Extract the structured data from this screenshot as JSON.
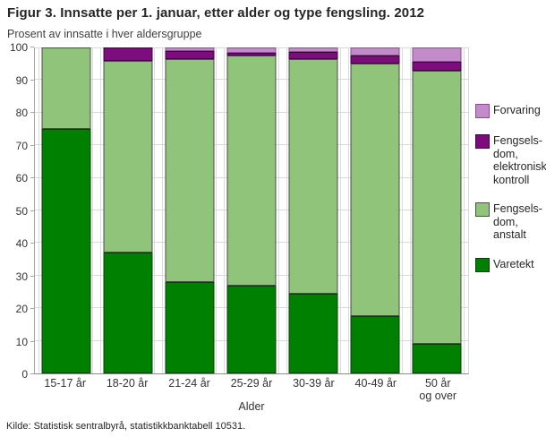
{
  "title": "Figur 3. Innsatte per 1. januar, etter alder og type fengsling. 2012",
  "subtitle": "Prosent av innsatte i hver aldersgruppe",
  "x_axis_title": "Alder",
  "source": "Kilde: Statistisk sentralbyrå, statistikkbanktabell 10531.",
  "colors": {
    "varetekt": "#008000",
    "fengselsdom_anstalt": "#8fc47a",
    "fengselsdom_elektronisk_kontroll": "#7d0d7d",
    "forvaring": "#c48bca",
    "gridline": "#d9d9d9",
    "axis": "#a6a6a6"
  },
  "chart_data": {
    "type": "bar",
    "stacked": true,
    "title": "Figur 3. Innsatte per 1. januar, etter alder og type fengsling. 2012",
    "ylabel": "Prosent av innsatte i hver aldersgruppe",
    "xlabel": "Alder",
    "categories": [
      "15-17 år",
      "18-20 år",
      "21-24 år",
      "25-29 år",
      "30-39 år",
      "40-49 år",
      "50 år\nog over"
    ],
    "series": [
      {
        "name": "Varetekt",
        "legend_label": "Varetekt",
        "color": "#008000",
        "border": "#0e3b0e",
        "values": [
          75,
          37,
          28,
          27,
          24.5,
          17.5,
          9
        ]
      },
      {
        "name": "Fengselsdom, anstalt",
        "legend_label": "Fengsels-\ndom,\nanstalt",
        "color": "#8fc47a",
        "border": "#4d4d4d",
        "values": [
          25,
          59,
          68.5,
          70.5,
          72,
          77.5,
          84
        ]
      },
      {
        "name": "Fengselsdom, elektronisk kontroll",
        "legend_label": "Fengsels-\ndom,\nelektronisk\nkontroll",
        "color": "#7d0d7d",
        "border": "#3c033c",
        "values": [
          0,
          4,
          2.5,
          1,
          2,
          2.5,
          2.5
        ]
      },
      {
        "name": "Forvaring",
        "legend_label": "Forvaring",
        "color": "#c48bca",
        "border": "#8f4b97",
        "values": [
          0,
          0,
          1,
          1.5,
          1.5,
          2.5,
          4.5
        ]
      }
    ],
    "ylim": [
      0,
      100
    ],
    "ytick_step": 10,
    "grid": true,
    "legend_position": "right"
  }
}
